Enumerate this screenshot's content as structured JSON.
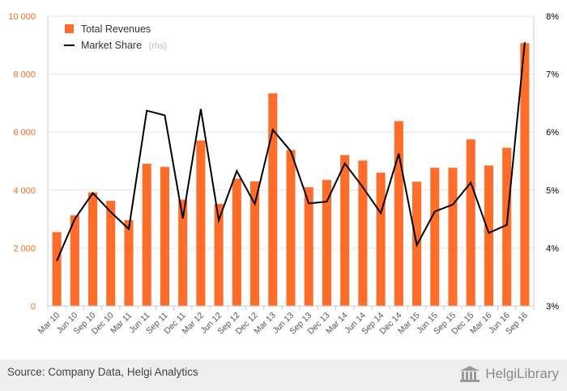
{
  "chart_data": {
    "type": "bar",
    "categories": [
      "Mar 10",
      "Jun 10",
      "Sep 10",
      "Dec 10",
      "Mar 11",
      "Jun 11",
      "Sep 11",
      "Dec 11",
      "Mar 12",
      "Jun 12",
      "Sep 12",
      "Dec 12",
      "Mar 13",
      "Jun 13",
      "Sep 13",
      "Dec 13",
      "Mar 14",
      "Jun 14",
      "Sep 14",
      "Dec 14",
      "Mar 15",
      "Jun 15",
      "Sep 15",
      "Dec 15",
      "Mar 16",
      "Jun 16",
      "Sep 16"
    ],
    "series": [
      {
        "name": "Total Revenues",
        "type": "bar",
        "axis": "left",
        "color": "#ff6d2a",
        "values": [
          2550,
          3130,
          3920,
          3630,
          2960,
          4910,
          4800,
          3670,
          5710,
          3520,
          4390,
          4300,
          7340,
          5380,
          4100,
          4350,
          5210,
          5020,
          4600,
          6380,
          4290,
          4770,
          4770,
          5750,
          4850,
          5460,
          9070
        ]
      },
      {
        "name": "Market Share",
        "rhs_note": "(rhs)",
        "type": "line",
        "axis": "right",
        "color": "#000000",
        "values": [
          3.78,
          4.5,
          4.95,
          4.62,
          4.33,
          6.37,
          6.29,
          4.51,
          6.4,
          4.48,
          5.33,
          4.76,
          6.04,
          5.67,
          4.77,
          4.8,
          5.46,
          5.05,
          4.6,
          5.63,
          4.05,
          4.63,
          4.75,
          5.13,
          4.26,
          4.4,
          7.55
        ]
      }
    ],
    "y_left": {
      "ylim": [
        0,
        10000
      ],
      "ticks": [
        0,
        2000,
        4000,
        6000,
        8000,
        10000
      ],
      "tick_labels": [
        "0",
        "2 000",
        "4 000",
        "6 000",
        "8 000",
        "10 000"
      ],
      "color": "#f26a1b"
    },
    "y_right": {
      "ylim": [
        3,
        8
      ],
      "ticks": [
        3,
        4,
        5,
        6,
        7,
        8
      ],
      "tick_labels": [
        "3%",
        "4%",
        "5%",
        "6%",
        "7%",
        "8%"
      ]
    },
    "grid": true,
    "legend_placement": "top-left"
  },
  "footer": {
    "source": "Source: Company Data, Helgi Analytics",
    "brand_name": "HelgiLibrary"
  }
}
